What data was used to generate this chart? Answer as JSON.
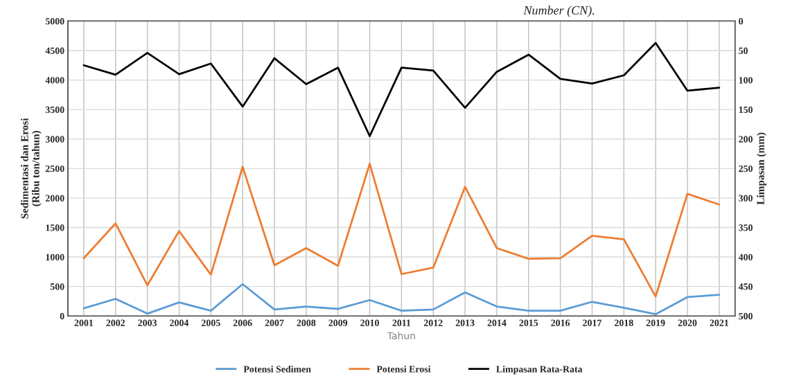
{
  "chart_data": {
    "type": "line",
    "xlabel": "Tahun",
    "ylabel": "Sedimentasi dan Erosi\n(Ribu ton/tahun)",
    "y2label": "Limpasan (mm)",
    "annotations": [
      "Number (CN)."
    ],
    "categories": [
      "2001",
      "2002",
      "2003",
      "2004",
      "2005",
      "2006",
      "2007",
      "2008",
      "2009",
      "2010",
      "2011",
      "2012",
      "2013",
      "2014",
      "2015",
      "2016",
      "2017",
      "2018",
      "2019",
      "2020",
      "2021"
    ],
    "series": [
      {
        "name": "Potensi Sedimen",
        "color": "#5b9bd5",
        "values": [
          130,
          290,
          40,
          230,
          90,
          540,
          110,
          160,
          120,
          270,
          90,
          110,
          400,
          160,
          90,
          90,
          240,
          140,
          30,
          320,
          360
        ]
      },
      {
        "name": "Potensi Erosi",
        "color": "#ed7d31",
        "values": [
          980,
          1570,
          520,
          1440,
          700,
          2530,
          860,
          1150,
          850,
          2580,
          710,
          820,
          2190,
          1150,
          970,
          980,
          1360,
          1300,
          330,
          2070,
          1890
        ]
      },
      {
        "name": "Limpasan Rata-Rata",
        "color": "#000000",
        "axis": "y2",
        "values": [
          75,
          91,
          54,
          90,
          72,
          145,
          63,
          107,
          79,
          195,
          79,
          84,
          147,
          86,
          57,
          98,
          106,
          92,
          37,
          118,
          113
        ]
      }
    ],
    "ylim": [
      0,
      5000
    ],
    "yticks": [
      0,
      500,
      1000,
      1500,
      2000,
      2500,
      3000,
      3500,
      4000,
      4500,
      5000
    ],
    "y2lim": [
      500,
      0
    ],
    "y2ticks": [
      0,
      50,
      100,
      150,
      200,
      250,
      300,
      350,
      400,
      450,
      500
    ],
    "grid": true,
    "legend": "bottom",
    "marker": "none",
    "line_style": "solid"
  }
}
